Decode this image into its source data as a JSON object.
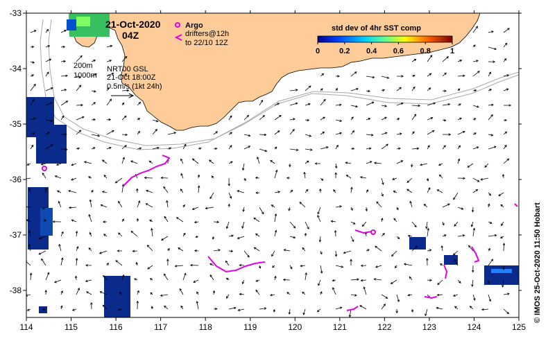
{
  "map": {
    "date_label": "21-Oct-2020",
    "time_label": "04Z",
    "legend_argo": "Argo",
    "legend_drifters_line1": "drifters@12h",
    "legend_drifters_line2": "to 22/10 12Z",
    "contour_label_1": "200m",
    "contour_label_2": "1000m",
    "product_label": "NRT00 GSL",
    "product_time": "21-Oct 18:00Z",
    "vector_scale_label": "0.5m/s (1kt 24h)",
    "credit": "© IMOS 25-Oct-2020 11:50 Hobart",
    "colorbar": {
      "title": "std dev of 4hr SST comp",
      "ticks": [
        "0",
        "0.2",
        "0.4",
        "0.6",
        "0.8",
        "1"
      ]
    },
    "x_ticks": [
      "114",
      "115",
      "116",
      "117",
      "118",
      "119",
      "120",
      "121",
      "122",
      "123",
      "124",
      "125"
    ],
    "y_ticks": [
      "-33",
      "-34",
      "-35",
      "-36",
      "-37",
      "-38"
    ],
    "colors": {
      "land": "#fdcc99",
      "drifter": "#e000e0",
      "sst_patch": "#0a2a8c",
      "contour": "#a8a8a8"
    }
  }
}
